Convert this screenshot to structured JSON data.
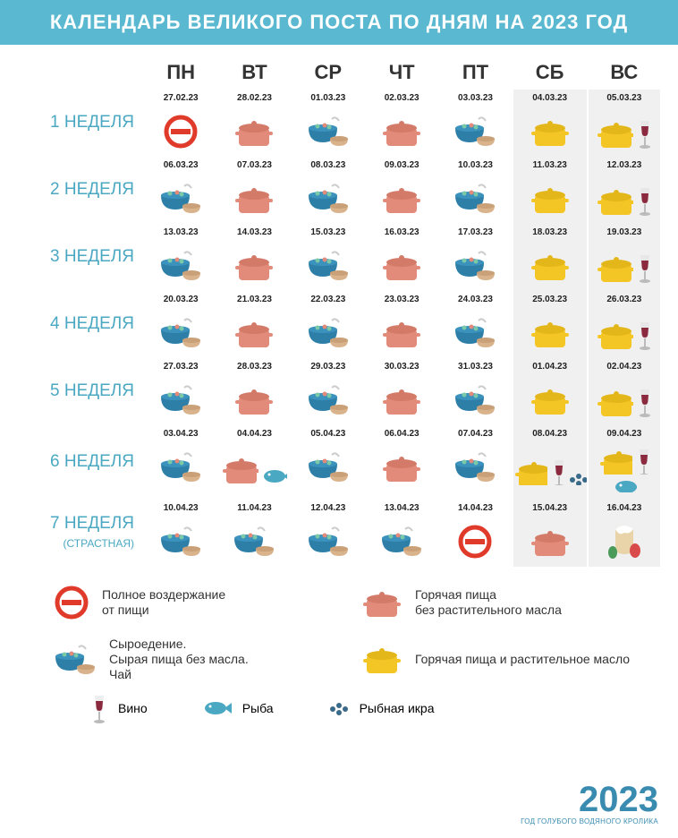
{
  "title": "КАЛЕНДАРЬ ВЕЛИКОГО ПОСТА ПО ДНЯМ НА 2023 ГОД",
  "colors": {
    "header_bg": "#5ab9d1",
    "accent": "#4aa8c2",
    "pot_salmon": "#e38b7a",
    "pot_yellow": "#f4c625",
    "bowl_blue": "#2d7fa8",
    "cup_tan": "#d9b38c",
    "wine_red": "#8b2a3e",
    "fish_blue": "#4aa8c2",
    "forbid_red": "#e03a2a",
    "weekend_bg": "#f0f0f0"
  },
  "day_headers": [
    "ПН",
    "ВТ",
    "СР",
    "ЧТ",
    "ПТ",
    "СБ",
    "ВС"
  ],
  "weeks": [
    {
      "label": "1 НЕДЕЛЯ",
      "sub": "",
      "days": [
        {
          "date": "27.02.23",
          "icon": "forbid"
        },
        {
          "date": "28.02.23",
          "icon": "pot_salmon"
        },
        {
          "date": "01.03.23",
          "icon": "bowl"
        },
        {
          "date": "02.03.23",
          "icon": "pot_salmon"
        },
        {
          "date": "03.03.23",
          "icon": "bowl"
        },
        {
          "date": "04.03.23",
          "icon": "pot_yellow",
          "weekend": true
        },
        {
          "date": "05.03.23",
          "icon": "pot_yellow_wine",
          "weekend": true
        }
      ]
    },
    {
      "label": "2 НЕДЕЛЯ",
      "sub": "",
      "days": [
        {
          "date": "06.03.23",
          "icon": "bowl"
        },
        {
          "date": "07.03.23",
          "icon": "pot_salmon"
        },
        {
          "date": "08.03.23",
          "icon": "bowl"
        },
        {
          "date": "09.03.23",
          "icon": "pot_salmon"
        },
        {
          "date": "10.03.23",
          "icon": "bowl"
        },
        {
          "date": "11.03.23",
          "icon": "pot_yellow",
          "weekend": true
        },
        {
          "date": "12.03.23",
          "icon": "pot_yellow_wine",
          "weekend": true
        }
      ]
    },
    {
      "label": "3 НЕДЕЛЯ",
      "sub": "",
      "days": [
        {
          "date": "13.03.23",
          "icon": "bowl"
        },
        {
          "date": "14.03.23",
          "icon": "pot_salmon"
        },
        {
          "date": "15.03.23",
          "icon": "bowl"
        },
        {
          "date": "16.03.23",
          "icon": "pot_salmon"
        },
        {
          "date": "17.03.23",
          "icon": "bowl"
        },
        {
          "date": "18.03.23",
          "icon": "pot_yellow",
          "weekend": true
        },
        {
          "date": "19.03.23",
          "icon": "pot_yellow_wine",
          "weekend": true
        }
      ]
    },
    {
      "label": "4 НЕДЕЛЯ",
      "sub": "",
      "days": [
        {
          "date": "20.03.23",
          "icon": "bowl"
        },
        {
          "date": "21.03.23",
          "icon": "pot_salmon"
        },
        {
          "date": "22.03.23",
          "icon": "bowl"
        },
        {
          "date": "23.03.23",
          "icon": "pot_salmon"
        },
        {
          "date": "24.03.23",
          "icon": "bowl"
        },
        {
          "date": "25.03.23",
          "icon": "pot_yellow",
          "weekend": true
        },
        {
          "date": "26.03.23",
          "icon": "pot_yellow_wine",
          "weekend": true
        }
      ]
    },
    {
      "label": "5 НЕДЕЛЯ",
      "sub": "",
      "days": [
        {
          "date": "27.03.23",
          "icon": "bowl"
        },
        {
          "date": "28.03.23",
          "icon": "pot_salmon"
        },
        {
          "date": "29.03.23",
          "icon": "bowl"
        },
        {
          "date": "30.03.23",
          "icon": "pot_salmon"
        },
        {
          "date": "31.03.23",
          "icon": "bowl"
        },
        {
          "date": "01.04.23",
          "icon": "pot_yellow",
          "weekend": true
        },
        {
          "date": "02.04.23",
          "icon": "pot_yellow_wine",
          "weekend": true
        }
      ]
    },
    {
      "label": "6 НЕДЕЛЯ",
      "sub": "",
      "days": [
        {
          "date": "03.04.23",
          "icon": "bowl"
        },
        {
          "date": "04.04.23",
          "icon": "pot_salmon_fish"
        },
        {
          "date": "05.04.23",
          "icon": "bowl"
        },
        {
          "date": "06.04.23",
          "icon": "pot_salmon"
        },
        {
          "date": "07.04.23",
          "icon": "bowl"
        },
        {
          "date": "08.04.23",
          "icon": "pot_yellow_wine_caviar",
          "weekend": true
        },
        {
          "date": "09.04.23",
          "icon": "pot_yellow_wine_fish",
          "weekend": true
        }
      ]
    },
    {
      "label": "7 НЕДЕЛЯ",
      "sub": "(СТРАСТНАЯ)",
      "days": [
        {
          "date": "10.04.23",
          "icon": "bowl"
        },
        {
          "date": "11.04.23",
          "icon": "bowl"
        },
        {
          "date": "12.04.23",
          "icon": "bowl"
        },
        {
          "date": "13.04.23",
          "icon": "bowl"
        },
        {
          "date": "14.04.23",
          "icon": "forbid"
        },
        {
          "date": "15.04.23",
          "icon": "pot_salmon",
          "weekend": true
        },
        {
          "date": "16.04.23",
          "icon": "easter",
          "weekend": true
        }
      ]
    }
  ],
  "legend": {
    "forbid": "Полное воздержание\nот пищи",
    "bowl": "Сыроедение.\nСырая пища без масла.\nЧай",
    "pot_salmon": "Горячая пища\nбез растительного масла",
    "pot_yellow": "Горячая пища и растительное масло",
    "wine": "Вино",
    "fish": "Рыба",
    "caviar": "Рыбная икра"
  },
  "footer": {
    "year": "2023",
    "sub": "ГОД ГОЛУБОГО ВОДЯНОГО КРОЛИКА"
  }
}
